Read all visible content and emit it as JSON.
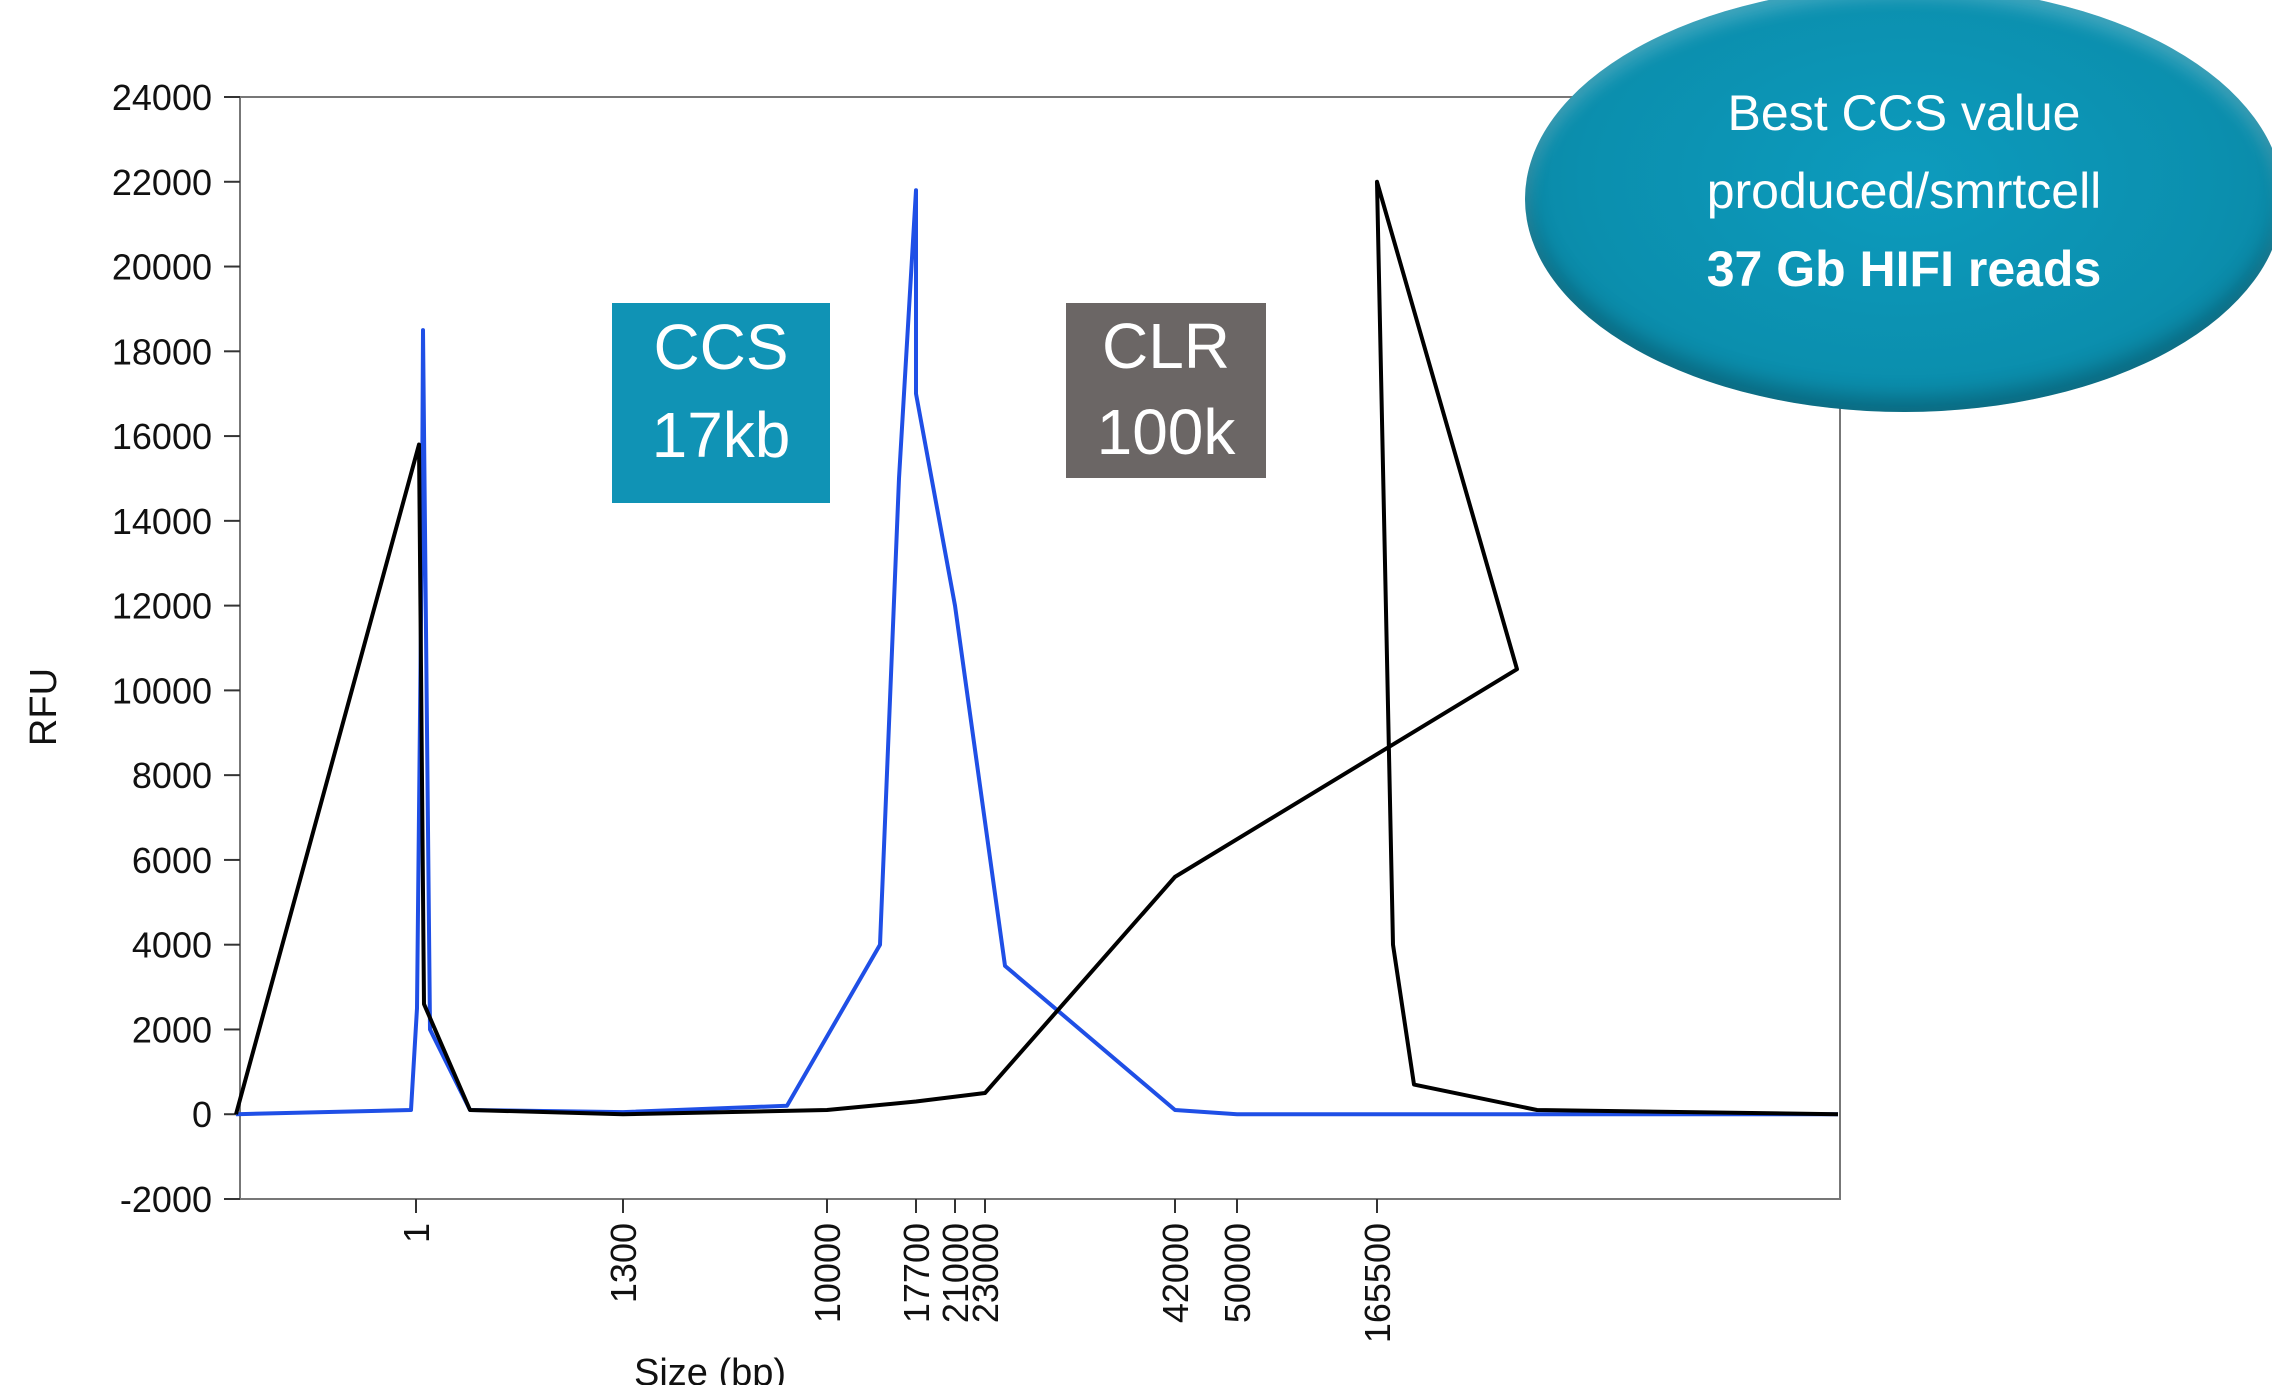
{
  "chart_data": {
    "type": "line",
    "title": "",
    "xlabel": "Size (bp)",
    "ylabel": "RFU",
    "ylim": [
      -2000,
      24000
    ],
    "yticks": [
      24000,
      22000,
      20000,
      18000,
      16000,
      14000,
      12000,
      10000,
      8000,
      6000,
      4000,
      2000,
      0,
      -2000
    ],
    "xtick_labels": [
      "1",
      "1300",
      "10000",
      "17700",
      "21000",
      "23000",
      "42000",
      "50000",
      "165500"
    ],
    "grid": false,
    "series": [
      {
        "color": "#1f4fe6",
        "points": [
          [
            "1",
            0
          ],
          [
            "1",
            100
          ],
          [
            "1",
            2500
          ],
          [
            "1",
            14000
          ],
          [
            "1",
            18500
          ],
          [
            "1",
            2000
          ],
          [
            "1",
            100
          ],
          [
            "1300",
            50
          ],
          [
            "10000",
            200
          ],
          [
            "10000",
            4000
          ],
          [
            "10000",
            15000
          ],
          [
            "17700",
            21800
          ],
          [
            "21000",
            17000
          ],
          [
            "23000",
            12000
          ],
          [
            "23000",
            3500
          ],
          [
            "42000",
            100
          ],
          [
            "50000",
            0
          ],
          [
            "165500",
            0
          ]
        ]
      },
      {
        "color": "#000000",
        "points": [
          [
            "1",
            0
          ],
          [
            "1",
            15800
          ],
          [
            "1",
            2600
          ],
          [
            "1",
            100
          ],
          [
            "1300",
            0
          ],
          [
            "10000",
            100
          ],
          [
            "17700",
            300
          ],
          [
            "23000",
            500
          ],
          [
            "42000",
            5600
          ],
          [
            "50000",
            10500
          ],
          [
            "165500",
            22000
          ],
          [
            "165500",
            4000
          ],
          [
            "165500",
            700
          ],
          [
            "165500",
            100
          ]
        ]
      }
    ]
  },
  "labels": {
    "ccs_line1": "CCS",
    "ccs_line2": "17kb",
    "ccs_color": "#1093b5",
    "clr_line1": "CLR",
    "clr_line2": "100k",
    "clr_color": "#6b6665"
  },
  "callout": {
    "line1": "Best CCS value",
    "line2": "produced/smrtcell",
    "line3": "37 Gb HIFI reads",
    "color": "#0b8fae"
  }
}
